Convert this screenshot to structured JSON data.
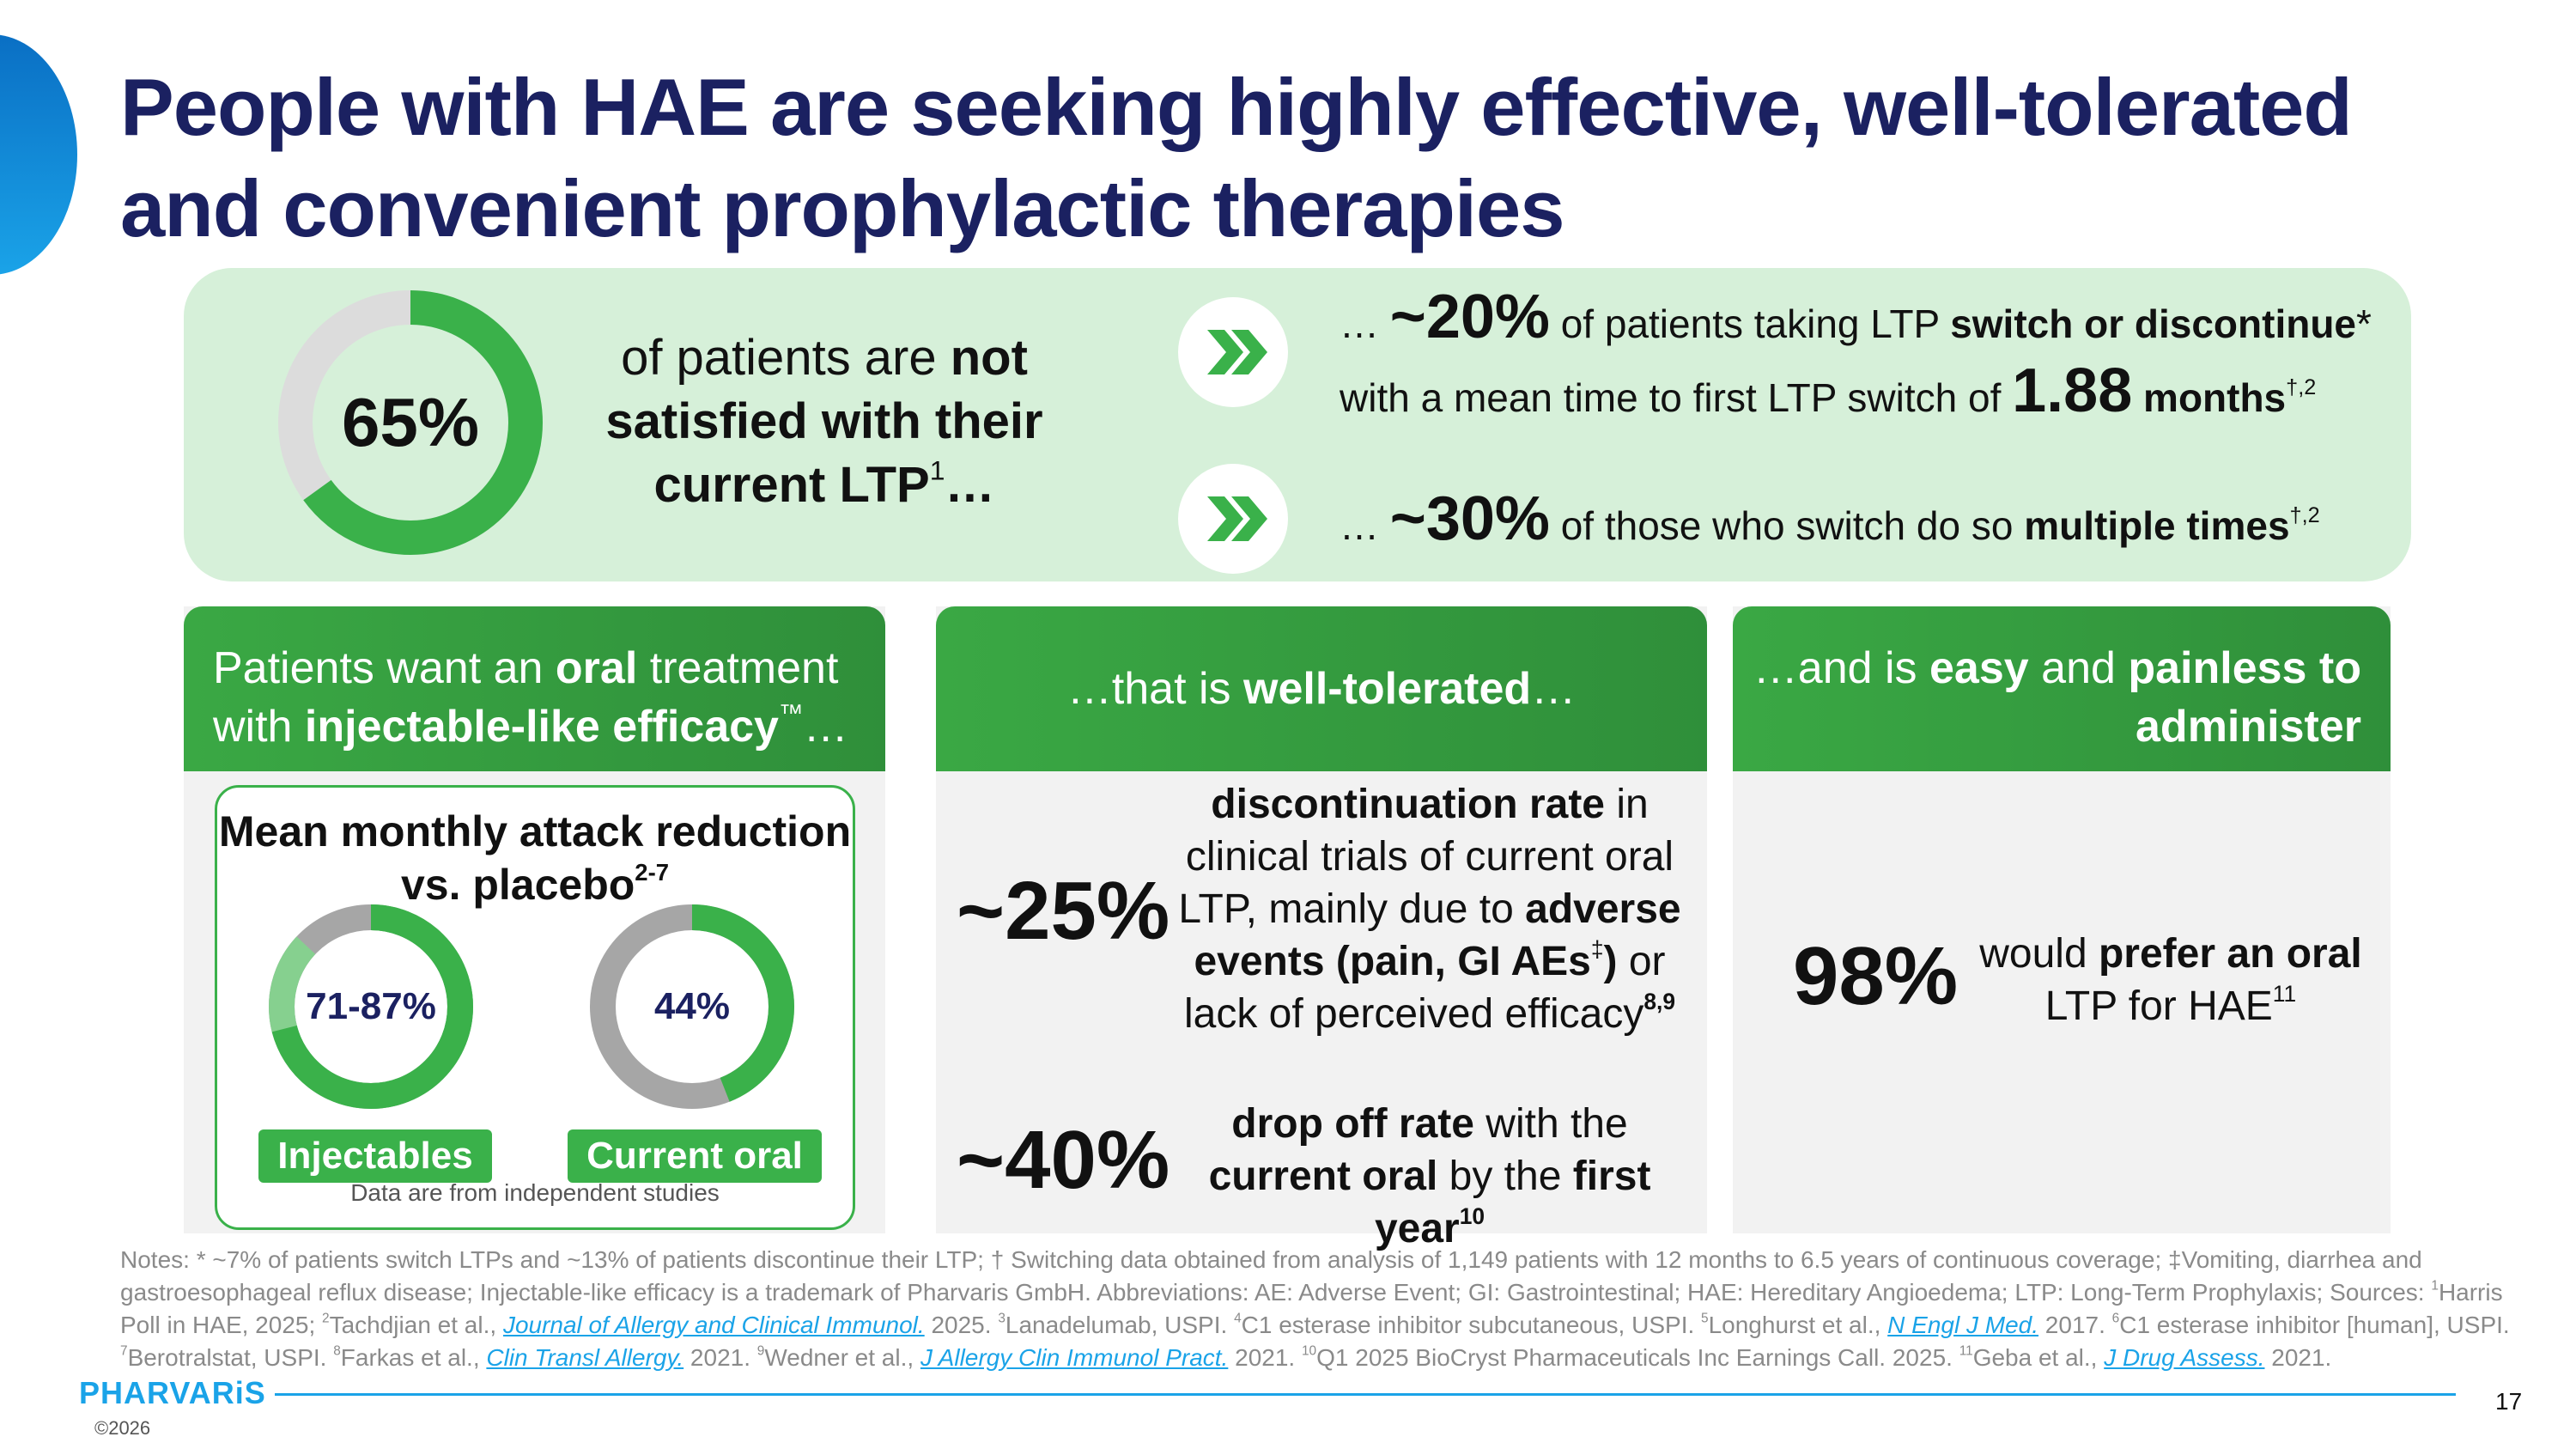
{
  "title": "People with HAE are seeking highly effective, well-tolerated and convenient prophylactic therapies",
  "colors": {
    "navy": "#1b2161",
    "green": "#3ab14a",
    "light_green": "#d6f0d9",
    "grey_ring": "#a6a6a6",
    "light_grey_ring": "#dcdcdc",
    "blue": "#1aa3e8"
  },
  "top": {
    "ring_value": 65,
    "ring_label": "65%",
    "sat": {
      "a": "of patients are ",
      "b": "not satisfied with their current LTP",
      "sup": "1",
      "c": "…"
    },
    "row1": {
      "a": "… ",
      "b": "~20%",
      "c": " of patients taking LTP ",
      "d": "switch or discontinue",
      "e": "* with a mean time to first LTP switch of ",
      "f": "1.88",
      "g": " months",
      "sup": "†,2"
    },
    "row2": {
      "a": "… ",
      "b": "~30%",
      "c": " of those who switch do so ",
      "d": "multiple times",
      "sup": "†,2"
    },
    "chevron_icon": "double-chevron-right-icon"
  },
  "col1": {
    "head": {
      "a": "Patients want an ",
      "b": "oral",
      "c": " treatment with ",
      "d": "injectable-like efficacy",
      "tm": "™",
      "e": "…"
    },
    "box_title": "Mean monthly attack reduction vs. placebo",
    "box_title_sup": "2-7",
    "rings": [
      {
        "label": "71-87%",
        "value_low": 71,
        "value_high": 87,
        "pill": "Injectables"
      },
      {
        "label": "44%",
        "value": 44,
        "pill": "Current oral"
      }
    ],
    "note": "Data are from independent studies"
  },
  "col2": {
    "head": {
      "a": "…that is ",
      "b": "well-tolerated",
      "c": "…"
    },
    "stat1": "~25%",
    "text1": {
      "a": "discontinuation rate",
      "b": " in clinical trials of current oral LTP, mainly due to ",
      "c": "adverse events (pain, GI AEs",
      "sup1": "‡",
      "d": ")",
      "e": " or lack of perceived efficacy",
      "sup2": "8,9"
    },
    "stat2": "~40%",
    "text2": {
      "a": "drop off rate",
      "b": " with the ",
      "c": "current oral",
      "d": " by the ",
      "e": "first year",
      "sup": "10"
    }
  },
  "col3": {
    "head": {
      "a": "…and is ",
      "b": "easy",
      "c": " and ",
      "d": "painless to administer"
    },
    "stat": "98%",
    "text": {
      "a": "would ",
      "b": "prefer an oral",
      "c": " LTP for HAE",
      "sup": "11"
    }
  },
  "notes": {
    "p1": "Notes: * ~7% of patients switch LTPs and ~13% of patients discontinue their LTP; † Switching data obtained from analysis of 1,149 patients with 12 months to 6.5 years of continuous coverage; ‡Vomiting, diarrhea and gastroesophageal reflux disease; Injectable-like efficacy is a trademark of Pharvaris GmbH. Abbreviations: AE: Adverse Event; GI: Gastrointestinal; HAE: Hereditary Angioedema; LTP: Long-Term Prophylaxis; Sources: ",
    "s1": "1",
    "p2": "Harris Poll in HAE, 2025; ",
    "s2": "2",
    "p3": "Tachdjian et al., ",
    "l1": "Journal of Allergy and Clinical Immunol.",
    "p4": " 2025. ",
    "s3": "3",
    "p5": "Lanadelumab, USPI. ",
    "s4": "4",
    "p6": "C1 esterase inhibitor subcutaneous, USPI. ",
    "s5": "5",
    "p7": "Longhurst et al., ",
    "l2": "N Engl J Med.",
    "p8": " 2017. ",
    "s6": "6",
    "p9": "C1 esterase inhibitor [human], USPI. ",
    "s7": "7",
    "p10": "Berotralstat, USPI. ",
    "s8": "8",
    "p11": "Farkas et al., ",
    "l3": "Clin Transl Allergy.",
    "p12": " 2021. ",
    "s9": "9",
    "p13": "Wedner et al., ",
    "l4": "J Allergy Clin Immunol Pract.",
    "p14": " 2021. ",
    "s10": "10",
    "p15": "Q1 2025 BioCryst Pharmaceuticals Inc Earnings Call. 2025. ",
    "s11": "11",
    "p16": "Geba et al., ",
    "l5": "J Drug Assess.",
    "p17": " 2021."
  },
  "footer": {
    "logo": "PHARVARiS",
    "copyright": "©2026",
    "page": "17"
  }
}
